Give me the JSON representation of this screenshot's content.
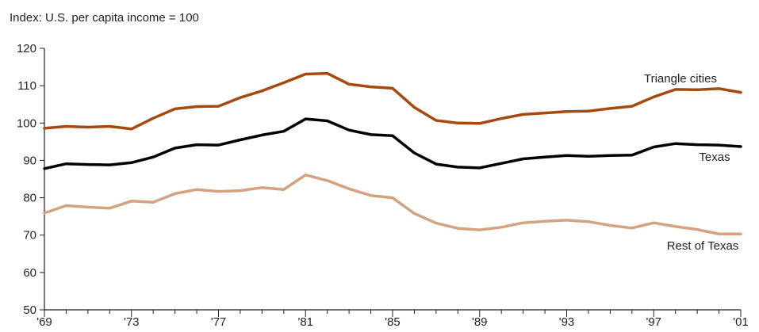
{
  "chart_data": {
    "type": "line",
    "title": "Index: U.S. per capita income = 100",
    "xlabel": "",
    "ylabel": "",
    "ylim": [
      50,
      120
    ],
    "xlim": [
      1969,
      2001
    ],
    "yticks": [
      50,
      60,
      70,
      80,
      90,
      100,
      110,
      120
    ],
    "xtick_values": [
      1969,
      1973,
      1977,
      1981,
      1985,
      1989,
      1993,
      1997,
      2001
    ],
    "xtick_labels": [
      "'69",
      "'73",
      "'77",
      "'81",
      "'85",
      "'89",
      "'93",
      "'97",
      "'01"
    ],
    "grid": false,
    "x": [
      1969,
      1970,
      1971,
      1972,
      1973,
      1974,
      1975,
      1976,
      1977,
      1978,
      1979,
      1980,
      1981,
      1982,
      1983,
      1984,
      1985,
      1986,
      1987,
      1988,
      1989,
      1990,
      1991,
      1992,
      1993,
      1994,
      1995,
      1996,
      1997,
      1998,
      1999,
      2000,
      2001
    ],
    "series": [
      {
        "name": "Triangle cities",
        "color": "#a54a0f",
        "values": [
          98.6,
          99.1,
          98.9,
          99.1,
          98.4,
          101.3,
          103.8,
          104.4,
          104.5,
          106.8,
          108.6,
          110.8,
          113.1,
          113.3,
          110.4,
          109.7,
          109.3,
          104.2,
          100.7,
          100.0,
          99.9,
          101.2,
          102.3,
          102.7,
          103.1,
          103.2,
          103.9,
          104.5,
          107.0,
          109.0,
          108.9,
          109.2,
          108.2
        ]
      },
      {
        "name": "Texas",
        "color": "#000000",
        "values": [
          87.8,
          89.1,
          88.9,
          88.8,
          89.4,
          90.9,
          93.3,
          94.2,
          94.1,
          95.5,
          96.8,
          97.8,
          101.1,
          100.6,
          98.1,
          96.9,
          96.6,
          92.0,
          89.0,
          88.2,
          88.0,
          89.2,
          90.4,
          90.9,
          91.3,
          91.1,
          91.3,
          91.4,
          93.6,
          94.5,
          94.2,
          94.1,
          93.7
        ]
      },
      {
        "name": "Rest of Texas",
        "color": "#d4a27e",
        "values": [
          75.9,
          77.9,
          77.5,
          77.2,
          79.1,
          78.8,
          81.1,
          82.2,
          81.7,
          81.9,
          82.7,
          82.2,
          86.1,
          84.6,
          82.4,
          80.6,
          80.0,
          75.8,
          73.2,
          71.8,
          71.4,
          72.1,
          73.3,
          73.7,
          74.0,
          73.6,
          72.6,
          71.9,
          73.3,
          72.3,
          71.5,
          70.3,
          70.3
        ]
      }
    ]
  }
}
